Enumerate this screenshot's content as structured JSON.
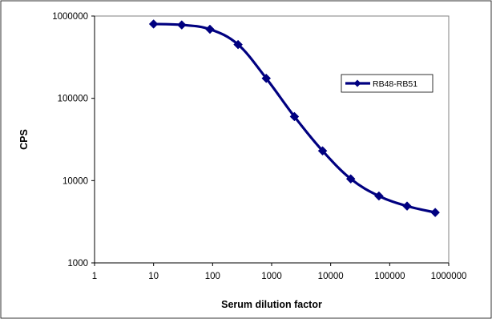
{
  "chart_data": {
    "type": "line",
    "title": "",
    "xlabel": "Serum dilution factor",
    "ylabel": "CPS",
    "x_scale": "log",
    "y_scale": "log",
    "xlim": [
      1,
      1000000
    ],
    "ylim": [
      1000,
      1000000
    ],
    "x_ticks": [
      1,
      10,
      100,
      1000,
      10000,
      100000,
      1000000
    ],
    "x_tick_labels": [
      "1",
      "10",
      "100",
      "1000",
      "10000",
      "100000",
      "1000000"
    ],
    "y_ticks": [
      1000,
      10000,
      100000,
      1000000
    ],
    "y_tick_labels": [
      "1000",
      "10000",
      "100000",
      "1000000"
    ],
    "grid": false,
    "legend_position": "right",
    "series": [
      {
        "name": "RB48-RB51",
        "color": "#000080",
        "marker": "diamond",
        "x": [
          10,
          30,
          90,
          270,
          810,
          2430,
          7290,
          21870,
          65610,
          196830,
          590490
        ],
        "values": [
          800000,
          780000,
          690000,
          450000,
          175000,
          60000,
          23000,
          10500,
          6500,
          4900,
          4100
        ]
      }
    ]
  }
}
